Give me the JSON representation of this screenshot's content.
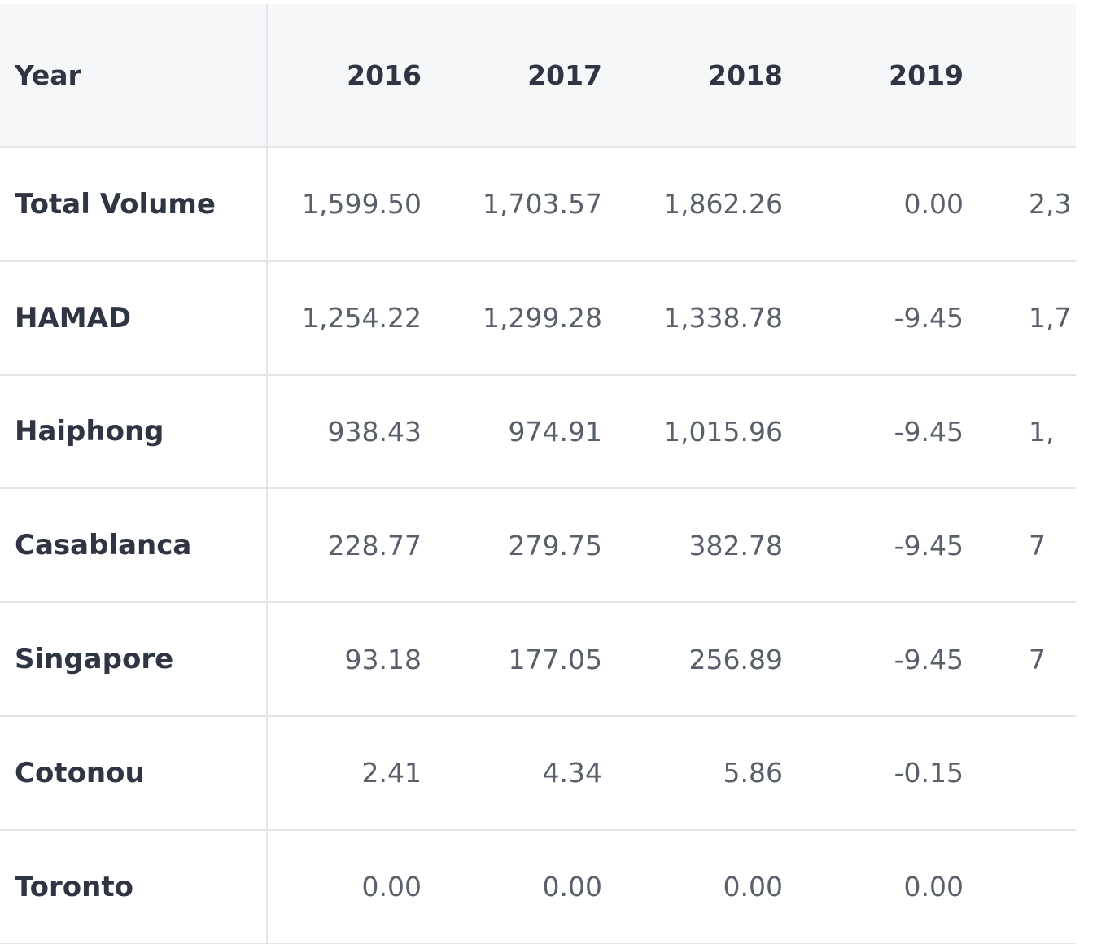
{
  "table": {
    "header_label": "Year",
    "years": [
      "2016",
      "2017",
      "2018",
      "2019",
      ""
    ],
    "rows": [
      {
        "label": "Total Volume",
        "values": [
          "1,599.50",
          "1,703.57",
          "1,862.26",
          "0.00",
          "2,3"
        ]
      },
      {
        "label": "HAMAD",
        "values": [
          "1,254.22",
          "1,299.28",
          "1,338.78",
          "-9.45",
          "1,7"
        ]
      },
      {
        "label": "Haiphong",
        "values": [
          "938.43",
          "974.91",
          "1,015.96",
          "-9.45",
          "1,"
        ]
      },
      {
        "label": "Casablanca",
        "values": [
          "228.77",
          "279.75",
          "382.78",
          "-9.45",
          "7"
        ]
      },
      {
        "label": "Singapore",
        "values": [
          "93.18",
          "177.05",
          "256.89",
          "-9.45",
          "7"
        ]
      },
      {
        "label": "Cotonou",
        "values": [
          "2.41",
          "4.34",
          "5.86",
          "-0.15",
          ""
        ]
      },
      {
        "label": "Toronto",
        "values": [
          "0.00",
          "0.00",
          "0.00",
          "0.00",
          ""
        ]
      }
    ]
  },
  "colors": {
    "header_bg": "#f6f7f9",
    "border": "#e3e5e8",
    "label_text": "#2f3542",
    "value_text": "#5a606b"
  }
}
